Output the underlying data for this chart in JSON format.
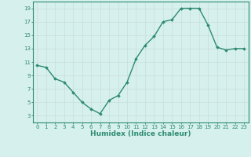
{
  "x": [
    0,
    1,
    2,
    3,
    4,
    5,
    6,
    7,
    8,
    9,
    10,
    11,
    12,
    13,
    14,
    15,
    16,
    17,
    18,
    19,
    20,
    21,
    22,
    23
  ],
  "y": [
    10.5,
    10.2,
    8.5,
    8.0,
    6.5,
    5.0,
    4.0,
    3.3,
    5.3,
    6.0,
    8.0,
    11.5,
    13.5,
    14.8,
    17.0,
    17.3,
    19.0,
    19.0,
    19.0,
    16.5,
    13.2,
    12.8,
    13.0,
    13.0
  ],
  "xlim": [
    -0.5,
    23.5
  ],
  "ylim": [
    2,
    20
  ],
  "yticks": [
    3,
    5,
    7,
    9,
    11,
    13,
    15,
    17,
    19
  ],
  "xticks": [
    0,
    1,
    2,
    3,
    4,
    5,
    6,
    7,
    8,
    9,
    10,
    11,
    12,
    13,
    14,
    15,
    16,
    17,
    18,
    19,
    20,
    21,
    22,
    23
  ],
  "xlabel": "Humidex (Indice chaleur)",
  "line_color": "#2e8b72",
  "marker": "D",
  "marker_size": 1.8,
  "bg_color": "#d6f0ee",
  "grid_color": "#c8deda",
  "axis_color": "#2e8b72",
  "linewidth": 1.0,
  "tick_fontsize": 5.0,
  "ylabel_fontsize": 5.0,
  "xlabel_fontsize": 6.5
}
